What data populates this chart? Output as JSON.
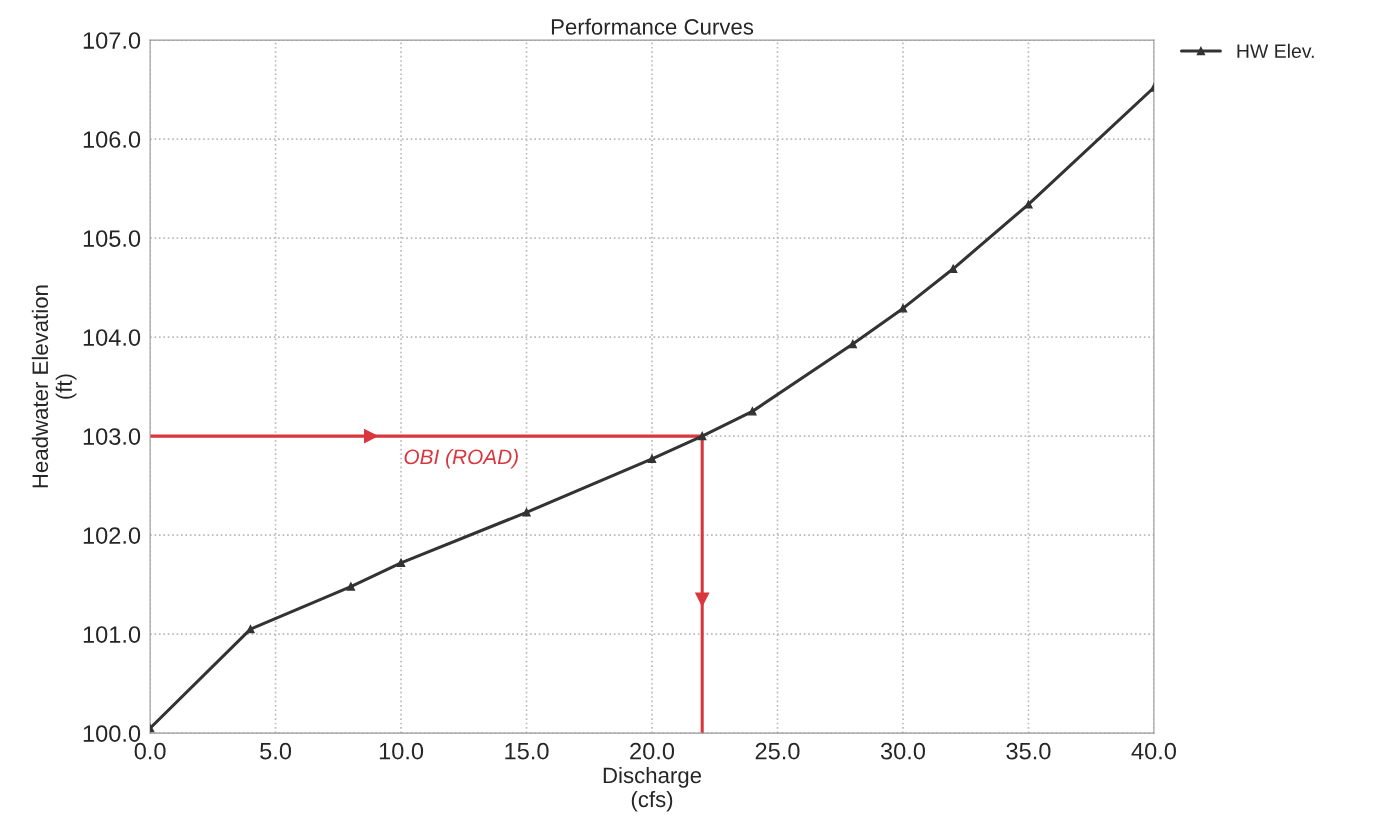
{
  "chart_data": {
    "type": "line",
    "title": "Performance Curves",
    "xlabel": "Discharge\n(cfs)",
    "ylabel": "Headwater Elevation\n(ft)",
    "series": [
      {
        "name": "HW Elev.",
        "color": "#333333",
        "marker": "triangle",
        "x": [
          0,
          4,
          8,
          10,
          15,
          20,
          22,
          24,
          28,
          30,
          32,
          35,
          40
        ],
        "values": [
          100.05,
          101.05,
          101.48,
          101.72,
          102.23,
          102.77,
          103.0,
          103.25,
          103.93,
          104.29,
          104.69,
          105.34,
          106.52
        ]
      },
      {
        "color": "#d9363e",
        "marker": "none",
        "x": [
          0,
          22,
          22
        ],
        "values": [
          103.0,
          103.0,
          100.0
        ]
      }
    ],
    "annotations": [
      "OBI (ROAD)"
    ],
    "xlim": [
      0,
      40
    ],
    "xticks": [
      {
        "value": 0,
        "label": "0.0"
      },
      {
        "value": 5,
        "label": "5.0"
      },
      {
        "value": 10,
        "label": "10.0"
      },
      {
        "value": 15,
        "label": "15.0"
      },
      {
        "value": 20,
        "label": "20.0"
      },
      {
        "value": 25,
        "label": "25.0"
      },
      {
        "value": 30,
        "label": "30.0"
      },
      {
        "value": 35,
        "label": "35.0"
      },
      {
        "value": 40,
        "label": "40.0"
      }
    ],
    "ylim": [
      100,
      107
    ],
    "yticks": [
      {
        "value": 100,
        "label": "100.0"
      },
      {
        "value": 101,
        "label": "101.0"
      },
      {
        "value": 102,
        "label": "102.0"
      },
      {
        "value": 103,
        "label": "103.0"
      },
      {
        "value": 104,
        "label": "104.0"
      },
      {
        "value": 105,
        "label": "105.0"
      },
      {
        "value": 106,
        "label": "106.0"
      },
      {
        "value": 107,
        "label": "107.0"
      }
    ],
    "grid": true,
    "legend": "top right",
    "line_style": "solid"
  }
}
